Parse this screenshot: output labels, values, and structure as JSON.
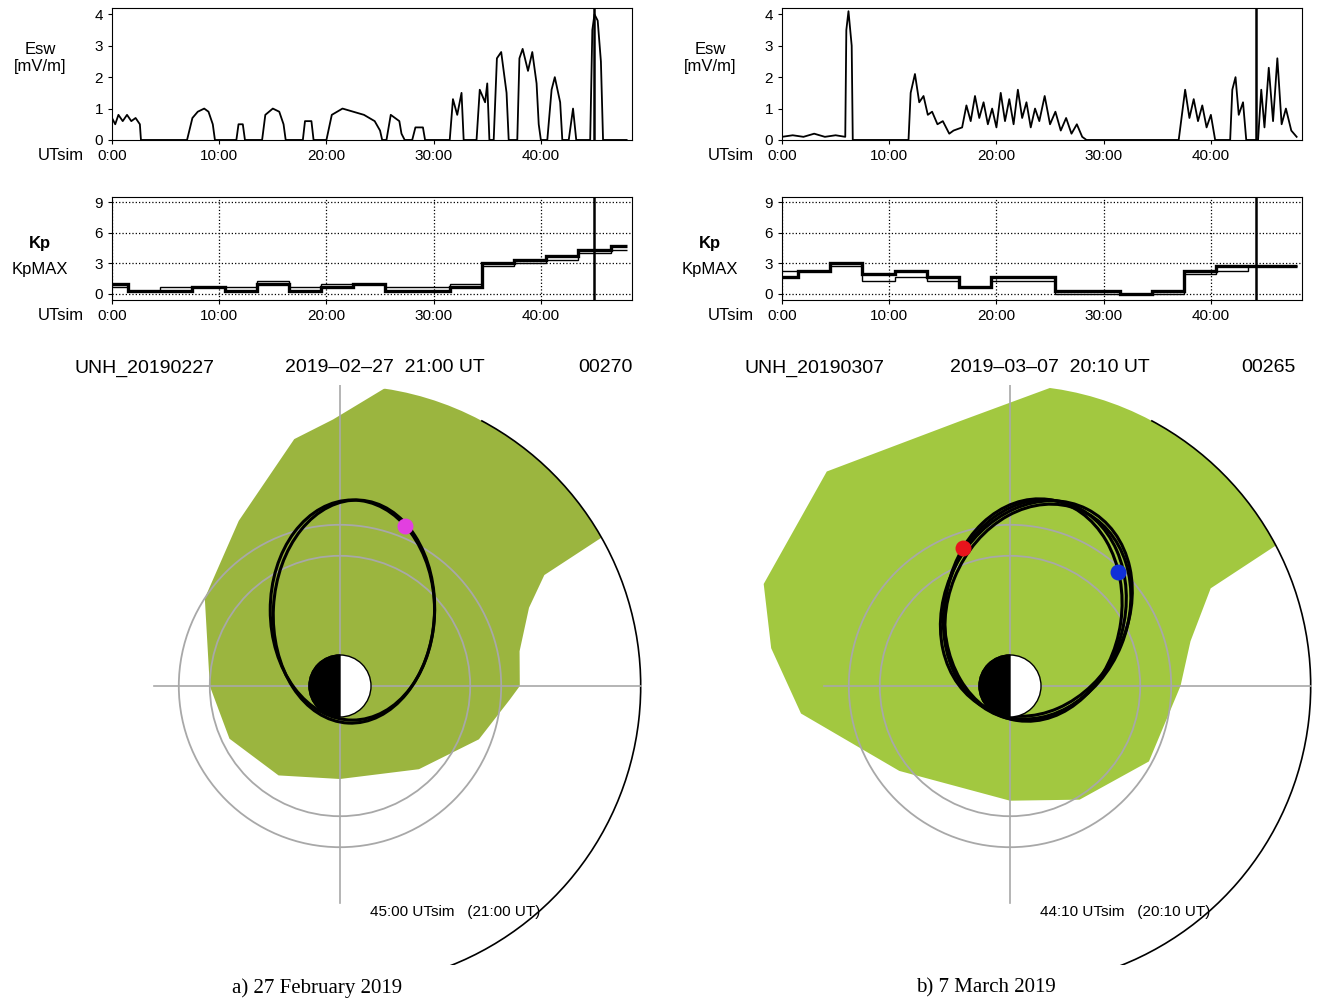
{
  "chart_data": [
    {
      "type": "line",
      "ylabel": "Esw\n[mV/m]",
      "xlabel": "UTsim",
      "color": "#000000",
      "x": [
        0,
        0.3,
        0.6,
        1,
        1.4,
        1.8,
        2.2,
        2.6,
        2.7,
        7,
        7.5,
        8,
        8.6,
        9,
        9.4,
        9.6,
        11.6,
        11.8,
        12.2,
        12.4,
        14,
        14.3,
        15,
        15.6,
        16,
        16.2,
        17.8,
        18,
        18.6,
        18.8,
        20,
        20.5,
        21.5,
        22.5,
        23.5,
        24.5,
        25,
        25.2,
        25.6,
        26,
        26.8,
        27,
        27.3,
        28,
        28.3,
        29,
        29.2,
        31.5,
        31.8,
        32.2,
        32.6,
        32.8,
        34,
        34.3,
        34.8,
        35,
        35.2,
        35.6,
        35.9,
        36.3,
        36.8,
        37,
        37.8,
        38,
        38.3,
        38.8,
        39.2,
        39.6,
        39.8,
        40,
        40.6,
        41,
        41.3,
        41.8,
        42,
        42.6,
        43,
        43.3,
        44.6,
        44.8,
        45,
        45.3,
        45.6,
        45.8,
        46,
        48
      ],
      "values": [
        0.7,
        0.5,
        0.8,
        0.6,
        0.8,
        0.6,
        0.7,
        0.5,
        0,
        0,
        0.7,
        0.9,
        1.0,
        0.9,
        0.5,
        0,
        0,
        0.5,
        0.5,
        0,
        0,
        0.8,
        1.0,
        0.9,
        0.5,
        0,
        0,
        0.6,
        0.6,
        0,
        0,
        0.8,
        1.0,
        0.9,
        0.8,
        0.6,
        0.3,
        0,
        0,
        0.8,
        0.6,
        0.2,
        0,
        0,
        0.4,
        0.4,
        0,
        0,
        1.3,
        0.8,
        1.5,
        0,
        0,
        1.6,
        1.2,
        1.8,
        0,
        0,
        2.6,
        2.8,
        1.5,
        0,
        0,
        2.6,
        2.9,
        2.2,
        2.8,
        1.8,
        0.5,
        0,
        0,
        1.6,
        2.0,
        1.2,
        0,
        0,
        1.0,
        0,
        0,
        3.5,
        4.0,
        3.8,
        2.5,
        0,
        0,
        0
      ],
      "xlim": [
        0,
        48.5
      ],
      "ylim": [
        0,
        4.2
      ],
      "xticks": [
        {
          "value": 0,
          "label": "0:00"
        },
        {
          "value": 10,
          "label": "10:00"
        },
        {
          "value": 20,
          "label": "20:00"
        },
        {
          "value": 30,
          "label": "30:00"
        },
        {
          "value": 40,
          "label": "40:00"
        }
      ],
      "yticks": [
        0,
        1,
        2,
        3,
        4
      ],
      "cursor_x": 45
    },
    {
      "type": "step",
      "xlabel": "UTsim",
      "edges": [
        0,
        1.5,
        4.5,
        7.5,
        10.5,
        13.5,
        16.5,
        19.5,
        22.5,
        25.5,
        28.5,
        31.5,
        34.5,
        37.5,
        40.5,
        43.5,
        46.5,
        48
      ],
      "series": [
        {
          "name": "Kp",
          "color": "#000000",
          "values": [
            1.0,
            0.3,
            0.3,
            0.7,
            0.3,
            1.0,
            0.3,
            0.7,
            1.0,
            0.3,
            0.3,
            0.7,
            3.0,
            3.3,
            3.7,
            4.3,
            4.7
          ]
        },
        {
          "name": "KpMAX",
          "color": "#000000",
          "values": [
            0.7,
            0.3,
            0.7,
            0.7,
            0.7,
            1.3,
            0.7,
            1.0,
            1.0,
            0.7,
            0.7,
            1.0,
            2.7,
            3.0,
            3.3,
            4.0,
            4.3
          ]
        }
      ],
      "xlim": [
        0,
        48.5
      ],
      "ylim": [
        -0.6,
        9.5
      ],
      "xticks": [
        {
          "value": 0,
          "label": "0:00"
        },
        {
          "value": 10,
          "label": "10:00"
        },
        {
          "value": 20,
          "label": "20:00"
        },
        {
          "value": 30,
          "label": "30:00"
        },
        {
          "value": 40,
          "label": "40:00"
        }
      ],
      "yticks": [
        0,
        3,
        6,
        9
      ],
      "grid": true,
      "cursor_x": 45
    },
    {
      "type": "line",
      "ylabel": "Esw\n[mV/m]",
      "xlabel": "UTsim",
      "color": "#000000",
      "x": [
        0,
        1,
        2,
        3,
        4,
        5,
        5.9,
        6,
        6.2,
        6.5,
        6.6,
        11.8,
        12,
        12.4,
        12.8,
        13.2,
        13.6,
        14,
        14.5,
        15,
        15.6,
        16,
        16.8,
        17.2,
        17.6,
        18,
        18.4,
        18.8,
        19.2,
        19.6,
        20,
        20.4,
        20.8,
        21.2,
        21.6,
        22,
        22.4,
        22.8,
        23.2,
        23.6,
        24,
        24.5,
        25,
        25.5,
        26,
        26.5,
        27,
        27.5,
        28,
        28.4,
        37,
        37.3,
        37.6,
        38,
        38.4,
        38.8,
        39.2,
        39.6,
        40,
        40.4,
        41.8,
        42,
        42.3,
        42.6,
        43,
        43.3,
        44.4,
        44.7,
        45,
        45.4,
        45.8,
        46.2,
        46.6,
        47,
        47.5,
        48
      ],
      "values": [
        0.1,
        0.15,
        0.1,
        0.2,
        0.1,
        0.15,
        0.1,
        3.5,
        4.1,
        3.0,
        0,
        0,
        1.5,
        2.1,
        1.2,
        1.4,
        0.8,
        0.9,
        0.5,
        0.6,
        0.2,
        0.3,
        0.4,
        1.1,
        0.6,
        1.4,
        0.7,
        1.2,
        0.5,
        1.0,
        0.4,
        1.5,
        0.6,
        1.3,
        0.5,
        1.6,
        0.7,
        1.2,
        0.4,
        1.0,
        0.6,
        1.4,
        0.5,
        0.9,
        0.3,
        0.7,
        0.2,
        0.5,
        0.1,
        0,
        0,
        0.8,
        1.6,
        0.7,
        1.3,
        0.6,
        1.1,
        0.4,
        0.8,
        0,
        0,
        1.6,
        2.0,
        0.8,
        1.2,
        0,
        0,
        1.6,
        0.4,
        2.3,
        0.6,
        2.6,
        0.5,
        1.0,
        0.3,
        0.1
      ],
      "xlim": [
        0,
        48.5
      ],
      "ylim": [
        0,
        4.2
      ],
      "xticks": [
        {
          "value": 0,
          "label": "0:00"
        },
        {
          "value": 10,
          "label": "10:00"
        },
        {
          "value": 20,
          "label": "20:00"
        },
        {
          "value": 30,
          "label": "30:00"
        },
        {
          "value": 40,
          "label": "40:00"
        }
      ],
      "yticks": [
        0,
        1,
        2,
        3,
        4
      ],
      "cursor_x": 44.1667
    },
    {
      "type": "step",
      "xlabel": "UTsim",
      "edges": [
        0,
        1.5,
        4.5,
        7.5,
        10.5,
        13.5,
        16.5,
        19.5,
        22.5,
        25.5,
        28.5,
        31.5,
        34.5,
        37.5,
        40.5,
        43.5,
        46.5,
        48
      ],
      "series": [
        {
          "name": "Kp",
          "color": "#000000",
          "values": [
            1.7,
            2.3,
            3.0,
            2.0,
            2.3,
            1.7,
            0.7,
            1.7,
            1.7,
            0.3,
            0.3,
            0.0,
            0.3,
            2.3,
            2.7,
            2.7,
            2.7
          ]
        },
        {
          "name": "KpMAX",
          "color": "#000000",
          "values": [
            2.3,
            2.3,
            2.7,
            1.3,
            1.7,
            1.3,
            0.7,
            1.3,
            1.3,
            0.0,
            0.0,
            0.0,
            0.0,
            2.0,
            2.3,
            2.7,
            2.7
          ]
        }
      ],
      "xlim": [
        0,
        48.5
      ],
      "ylim": [
        -0.6,
        9.5
      ],
      "xticks": [
        {
          "value": 0,
          "label": "0:00"
        },
        {
          "value": 10,
          "label": "10:00"
        },
        {
          "value": 20,
          "label": "20:00"
        },
        {
          "value": 30,
          "label": "30:00"
        },
        {
          "value": 40,
          "label": "40:00"
        }
      ],
      "yticks": [
        0,
        3,
        6,
        9
      ],
      "grid": true,
      "cursor_x": 44.1667
    }
  ],
  "maps": [
    {
      "type": "map",
      "header": [
        "UNH_20190227",
        "2019–02–27  21:00 UT",
        "00270"
      ],
      "time_label": "45:00 UTsim   (21:00 UT)",
      "caption": "a) 27 February 2019",
      "color": "#9bb53f",
      "boundary_radius": 9.7,
      "rings": [
        4.2,
        5.2
      ],
      "plasmapause": {
        "mlt": [
          12,
          12.73,
          13.5,
          13.9,
          14.0,
          15.9,
          17.3,
          18.1,
          18.7,
          20.1,
          21.8,
          0.0,
          1.7,
          3.7,
          6.0,
          8.9,
          10.6,
          11.7
        ],
        "radius": [
          5.8,
          5.9,
          6.6,
          7.5,
          11,
          11.5,
          10,
          8.6,
          8.1,
          6.25,
          5.2,
          4.2,
          3.95,
          3.5,
          3.0,
          3.7,
          4.8,
          5.5
        ]
      },
      "orbits": [
        {
          "center": [
            0.4,
            2.45
          ],
          "semi_axes": [
            2.65,
            3.55
          ],
          "tilt": 0
        },
        {
          "center": [
            0.45,
            2.4
          ],
          "semi_axes": [
            2.6,
            3.6
          ],
          "tilt": -3
        }
      ],
      "probes": [
        {
          "x": 2.1,
          "y": 5.15,
          "color": "#e23fe0"
        }
      ]
    },
    {
      "type": "map",
      "header": [
        "UNH_20190307",
        "2019–03–07  20:10 UT",
        "00265"
      ],
      "time_label": "44:10 UTsim   (20:10 UT)",
      "caption": "b) 7 March 2019",
      "color": "#a2c840",
      "boundary_radius": 9.7,
      "rings": [
        4.2,
        5.2
      ],
      "plasmapause": {
        "mlt": [
          12.0,
          12.93,
          13.73,
          13.9,
          15.8,
          17.0,
          18.7,
          20.7,
          22.5,
          23.4,
          0.5,
          2.5,
          6.0,
          8.1,
          10.1
        ],
        "radius": [
          5.5,
          6.0,
          7.2,
          11,
          11.2,
          10.5,
          8.7,
          9.1,
          8.6,
          7.8,
          6.8,
          4.5,
          3.7,
          4.3,
          5.1
        ]
      },
      "orbits": [
        {
          "center": [
            0.8,
            2.45
          ],
          "semi_axes": [
            2.9,
            3.6
          ],
          "tilt": -15
        },
        {
          "center": [
            0.75,
            2.45
          ],
          "semi_axes": [
            2.85,
            3.6
          ],
          "tilt": -8
        },
        {
          "center": [
            0.9,
            2.4
          ],
          "semi_axes": [
            2.9,
            3.55
          ],
          "tilt": -22
        },
        {
          "center": [
            0.85,
            2.5
          ],
          "semi_axes": [
            2.95,
            3.6
          ],
          "tilt": -27
        }
      ],
      "probes": [
        {
          "x": -1.52,
          "y": 4.45,
          "color": "#e8141c"
        },
        {
          "x": 3.48,
          "y": 3.68,
          "color": "#1030d8"
        }
      ]
    }
  ]
}
